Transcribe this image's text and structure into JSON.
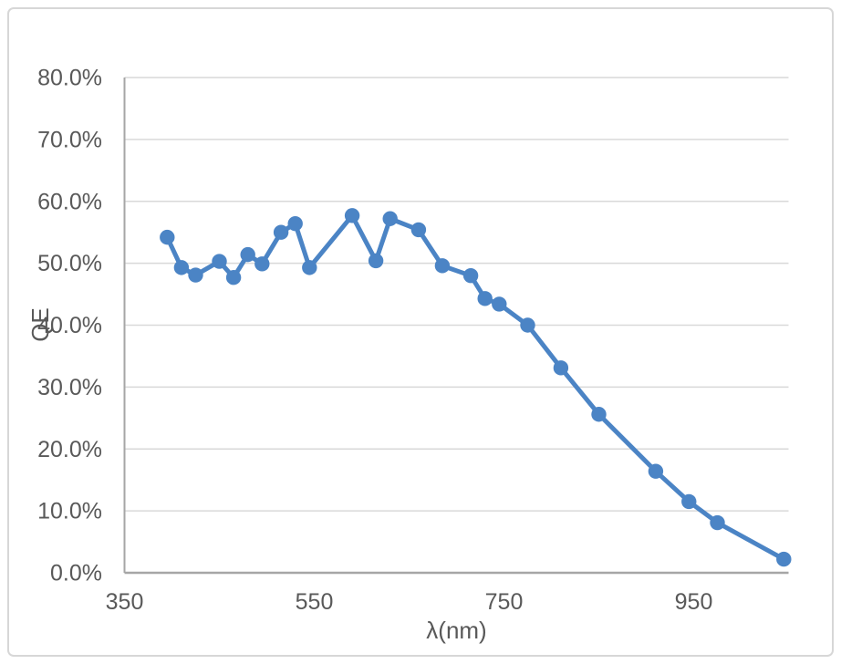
{
  "chart_data": {
    "type": "line",
    "title": "",
    "xlabel": "λ(nm)",
    "ylabel": "QE",
    "legend": "none",
    "grid": "horizontal",
    "marker": "circle",
    "xlim": [
      350,
      1050
    ],
    "ylim_percent": [
      0,
      80
    ],
    "x_ticks": [
      350,
      550,
      750,
      950
    ],
    "x_tick_labels": [
      "350",
      "550",
      "750",
      "950"
    ],
    "y_ticks_percent": [
      0,
      10,
      20,
      30,
      40,
      50,
      60,
      70,
      80
    ],
    "y_tick_labels": [
      "0.0%",
      "10.0%",
      "20.0%",
      "30.0%",
      "40.0%",
      "50.0%",
      "60.0%",
      "70.0%",
      "80.0%"
    ],
    "series": [
      {
        "name": "QE",
        "x_nm": [
          395,
          410,
          425,
          450,
          465,
          480,
          495,
          515,
          530,
          545,
          590,
          615,
          630,
          660,
          685,
          715,
          730,
          745,
          775,
          810,
          850,
          910,
          945,
          975,
          1045
        ],
        "y_qe_percent": [
          54.2,
          49.3,
          48.1,
          50.3,
          47.7,
          51.4,
          49.9,
          55.0,
          56.4,
          49.3,
          57.7,
          50.4,
          57.2,
          55.4,
          49.6,
          48.0,
          44.3,
          43.4,
          40.0,
          33.1,
          25.6,
          16.4,
          11.5,
          8.1,
          2.2
        ]
      }
    ],
    "colors": {
      "series_line": "#4b84c5",
      "gridline": "#d9d9d9",
      "axis_line": "#a6a6a6",
      "tick_label": "#595959",
      "axis_title": "#595959",
      "chart_border": "#d7d7d7",
      "background": "#ffffff"
    }
  }
}
